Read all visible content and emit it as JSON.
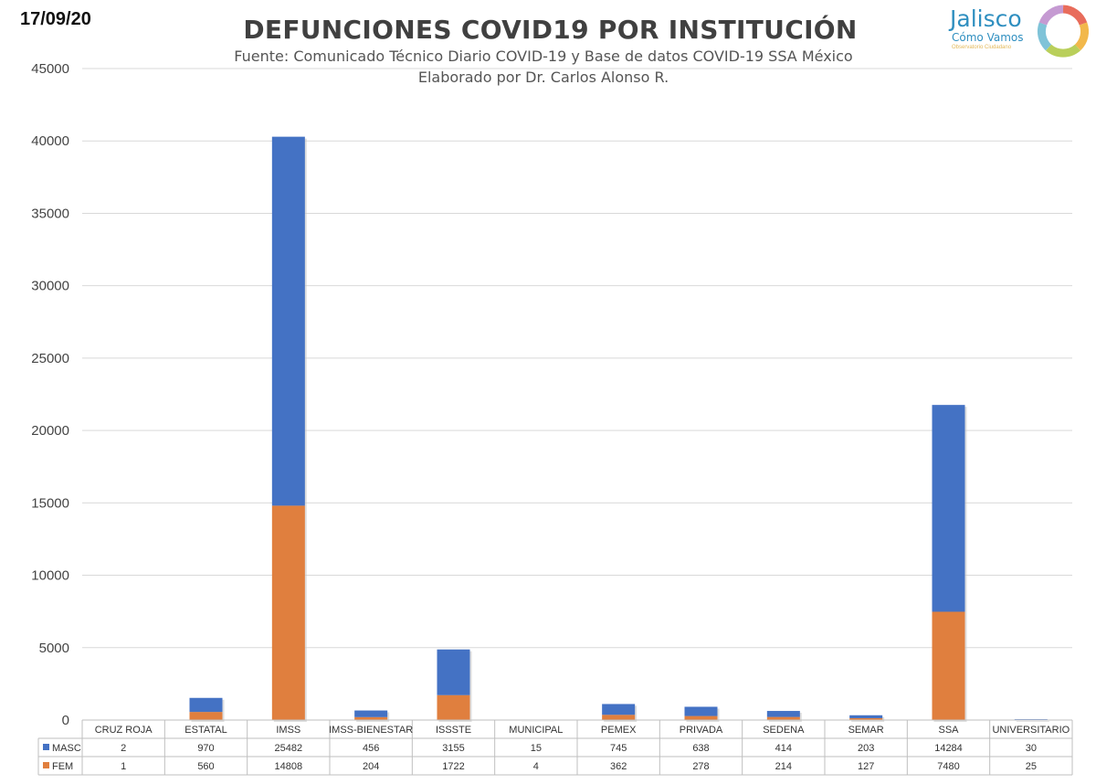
{
  "header": {
    "date": "17/09/20",
    "logo_name": "Jalisco",
    "logo_tagline": "Cómo Vamos",
    "logo_sub": "Observatorio Ciudadano"
  },
  "colors": {
    "masc": "#4472c4",
    "fem": "#e07f3e",
    "grid": "#d9d9d9"
  },
  "chart_data": {
    "type": "bar",
    "stacked": true,
    "title": "DEFUNCIONES COVID19 POR INSTITUCIÓN",
    "subtitle": "Fuente: Comunicado Técnico Diario COVID-19 y Base de datos COVID-19 SSA México",
    "subtitle2": "Elaborado por Dr. Carlos Alonso R.",
    "categories": [
      "CRUZ ROJA",
      "ESTATAL",
      "IMSS",
      "IMSS-BIENESTAR",
      "ISSSTE",
      "MUNICIPAL",
      "PEMEX",
      "PRIVADA",
      "SEDENA",
      "SEMAR",
      "SSA",
      "UNIVERSITARIO"
    ],
    "series": [
      {
        "name": "MASC",
        "values": [
          2,
          970,
          25482,
          456,
          3155,
          15,
          745,
          638,
          414,
          203,
          14284,
          30
        ]
      },
      {
        "name": "FEM",
        "values": [
          1,
          560,
          14808,
          204,
          1722,
          4,
          362,
          278,
          214,
          127,
          7480,
          25
        ]
      }
    ],
    "ylim": [
      0,
      45000
    ],
    "yticks": [
      "0",
      "5000",
      "10000",
      "15000",
      "20000",
      "25000",
      "30000",
      "35000",
      "40000",
      "45000"
    ],
    "grid": true,
    "legend": "data-table"
  }
}
